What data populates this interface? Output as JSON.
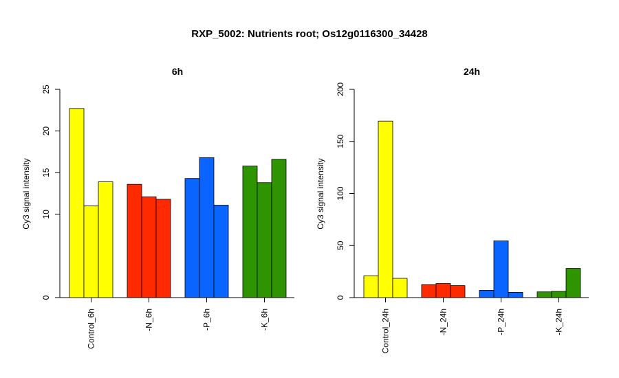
{
  "figure": {
    "title": "RXP_5002: Nutrients root; Os12g0116300_34428"
  },
  "chart_data": [
    {
      "type": "bar",
      "title": "6h",
      "ylabel": "Cy3 signal intensity",
      "ylim": [
        0,
        25
      ],
      "yticks": [
        0,
        10,
        15,
        20,
        25
      ],
      "categories": [
        "Control_6h",
        "-N_6h",
        "-P_6h",
        "-K_6h"
      ],
      "group_colors": [
        "#ffff00",
        "#ff2a00",
        "#0a64ff",
        "#2e9400"
      ],
      "values": [
        [
          22.7,
          11.0,
          13.9
        ],
        [
          13.6,
          12.1,
          11.8
        ],
        [
          14.3,
          16.8,
          11.1
        ],
        [
          15.8,
          13.8,
          16.6
        ]
      ]
    },
    {
      "type": "bar",
      "title": "24h",
      "ylabel": "Cy3 signal intensity",
      "ylim": [
        0,
        200
      ],
      "yticks": [
        0,
        50,
        100,
        150,
        200
      ],
      "categories": [
        "Control_24h",
        "-N_24h",
        "-P_24h",
        "-K_24h"
      ],
      "group_colors": [
        "#ffff00",
        "#ff2a00",
        "#0a64ff",
        "#2e9400"
      ],
      "values": [
        [
          21,
          169.5,
          18.5
        ],
        [
          12.5,
          13.5,
          11.5
        ],
        [
          7,
          54.5,
          5
        ],
        [
          5.5,
          6,
          28
        ]
      ]
    }
  ]
}
